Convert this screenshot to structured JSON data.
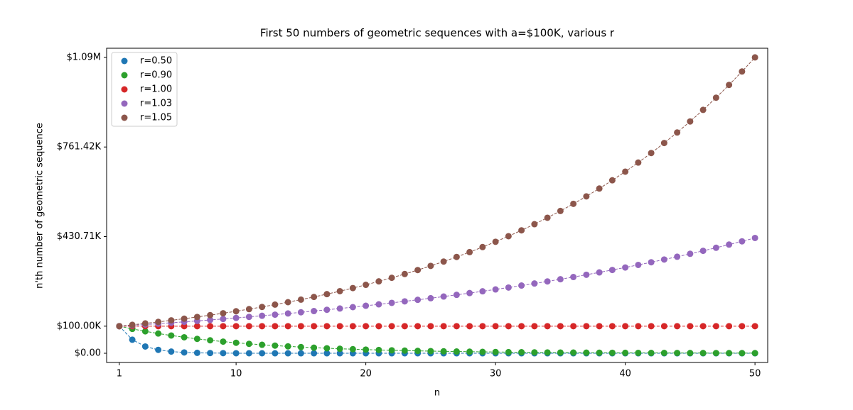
{
  "chart_data": {
    "type": "scatter",
    "title": "First 50 numbers of geometric sequences with a=$100K, various r",
    "x_label": "n",
    "y_label": "n'th number of geometric sequence",
    "legend": "upper left",
    "x": [
      1,
      2,
      3,
      4,
      5,
      6,
      7,
      8,
      9,
      10,
      11,
      12,
      13,
      14,
      15,
      16,
      17,
      18,
      19,
      20,
      21,
      22,
      23,
      24,
      25,
      26,
      27,
      28,
      29,
      30,
      31,
      32,
      33,
      34,
      35,
      36,
      37,
      38,
      39,
      40,
      41,
      42,
      43,
      44,
      45,
      46,
      47,
      48,
      49,
      50
    ],
    "xlim": [
      0.02,
      50.98
    ],
    "xticks": [
      1,
      10,
      20,
      30,
      40,
      50
    ],
    "ylim": [
      -34000,
      1126000
    ],
    "yticks": [
      {
        "value": 0,
        "label": "$0.00"
      },
      {
        "value": 100000,
        "label": "$100.00K"
      },
      {
        "value": 430711,
        "label": "$430.71K"
      },
      {
        "value": 761422,
        "label": "$761.42K"
      },
      {
        "value": 1092133,
        "label": "$1.09M"
      }
    ],
    "series": [
      {
        "name": "r=0.50",
        "color": "#1f77b4",
        "values": [
          100000,
          50000,
          25000,
          12500,
          6250,
          3125,
          1562.5,
          781.25,
          390.63,
          195.31,
          97.66,
          48.83,
          24.41,
          12.21,
          6.1,
          3.05,
          1.53,
          0.76,
          0.38,
          0.19,
          0.1,
          0.05,
          0.02,
          0.01,
          0,
          0,
          0,
          0,
          0,
          0,
          0,
          0,
          0,
          0,
          0,
          0,
          0,
          0,
          0,
          0,
          0,
          0,
          0,
          0,
          0,
          0,
          0,
          0,
          0,
          0
        ]
      },
      {
        "name": "r=0.90",
        "color": "#2ca02c",
        "values": [
          100000,
          90000,
          81000,
          72900,
          65610,
          59049,
          53144,
          47830,
          43047,
          38742,
          34868,
          31381,
          28243,
          25419,
          22877,
          20589,
          18530,
          16677,
          15009,
          13509,
          12158,
          10942,
          9848,
          8863,
          7977,
          7179,
          6461,
          5815,
          5233,
          4710,
          4239,
          3815,
          3434,
          3090,
          2781,
          2503,
          2253,
          2028,
          1825,
          1642,
          1478,
          1330,
          1197,
          1078,
          970,
          873,
          786,
          707,
          636,
          573
        ]
      },
      {
        "name": "r=1.00",
        "color": "#d62728",
        "values": [
          100000,
          100000,
          100000,
          100000,
          100000,
          100000,
          100000,
          100000,
          100000,
          100000,
          100000,
          100000,
          100000,
          100000,
          100000,
          100000,
          100000,
          100000,
          100000,
          100000,
          100000,
          100000,
          100000,
          100000,
          100000,
          100000,
          100000,
          100000,
          100000,
          100000,
          100000,
          100000,
          100000,
          100000,
          100000,
          100000,
          100000,
          100000,
          100000,
          100000,
          100000,
          100000,
          100000,
          100000,
          100000,
          100000,
          100000,
          100000,
          100000,
          100000
        ]
      },
      {
        "name": "r=1.03",
        "color": "#9467bd",
        "values": [
          100000,
          103000,
          106090,
          109273,
          112551,
          115927,
          119405,
          122987,
          126677,
          130477,
          134392,
          138423,
          142576,
          146853,
          151259,
          155797,
          160471,
          165285,
          170243,
          175351,
          180611,
          186029,
          191610,
          197359,
          203279,
          209378,
          215659,
          222129,
          228793,
          235657,
          242726,
          250008,
          257508,
          265234,
          273191,
          281386,
          289828,
          298523,
          307478,
          316703,
          326204,
          335990,
          346070,
          356452,
          367145,
          378160,
          389504,
          401190,
          413225,
          425622
        ]
      },
      {
        "name": "r=1.05",
        "color": "#8c564b",
        "values": [
          100000,
          105000,
          110250,
          115763,
          121551,
          127628,
          134010,
          140710,
          147746,
          155133,
          162889,
          171034,
          179586,
          188565,
          197993,
          207893,
          218287,
          229202,
          240662,
          252695,
          265330,
          278596,
          292526,
          307152,
          322510,
          338635,
          355567,
          373346,
          392013,
          411614,
          432194,
          453804,
          476494,
          500319,
          525335,
          551602,
          579182,
          608141,
          638548,
          670475,
          703999,
          739199,
          776159,
          814967,
          855715,
          898501,
          943426,
          990597,
          1040127,
          1092133
        ]
      }
    ]
  }
}
